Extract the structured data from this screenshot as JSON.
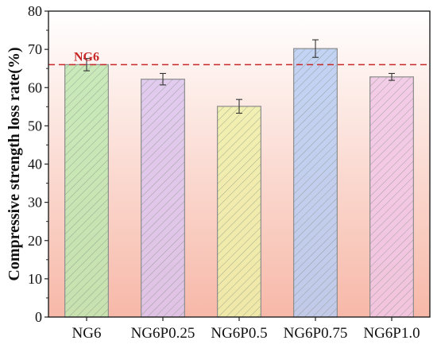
{
  "chart_data": {
    "type": "bar",
    "title": "",
    "xlabel": "",
    "ylabel": "Compressive strength loss rate(%)",
    "ylim": [
      0,
      80
    ],
    "yticks": [
      0,
      10,
      20,
      30,
      40,
      50,
      60,
      70,
      80
    ],
    "grid": false,
    "categories": [
      "NG6",
      "NG6P0.25",
      "NG6P0.5",
      "NG6P0.75",
      "NG6P1.0"
    ],
    "values": [
      66.0,
      62.2,
      55.1,
      70.2,
      62.8
    ],
    "errors": [
      1.6,
      1.5,
      1.8,
      2.3,
      0.9
    ],
    "bar_colors": [
      "#bfe8b0",
      "#dcc4ee",
      "#eef0a8",
      "#b9cdf3",
      "#f1c6e6"
    ],
    "reference_line": {
      "label": "NG6",
      "value": 66.0,
      "color": "#c62828"
    },
    "background_gradient": [
      "#ffffff",
      "#f7b8a8"
    ]
  }
}
